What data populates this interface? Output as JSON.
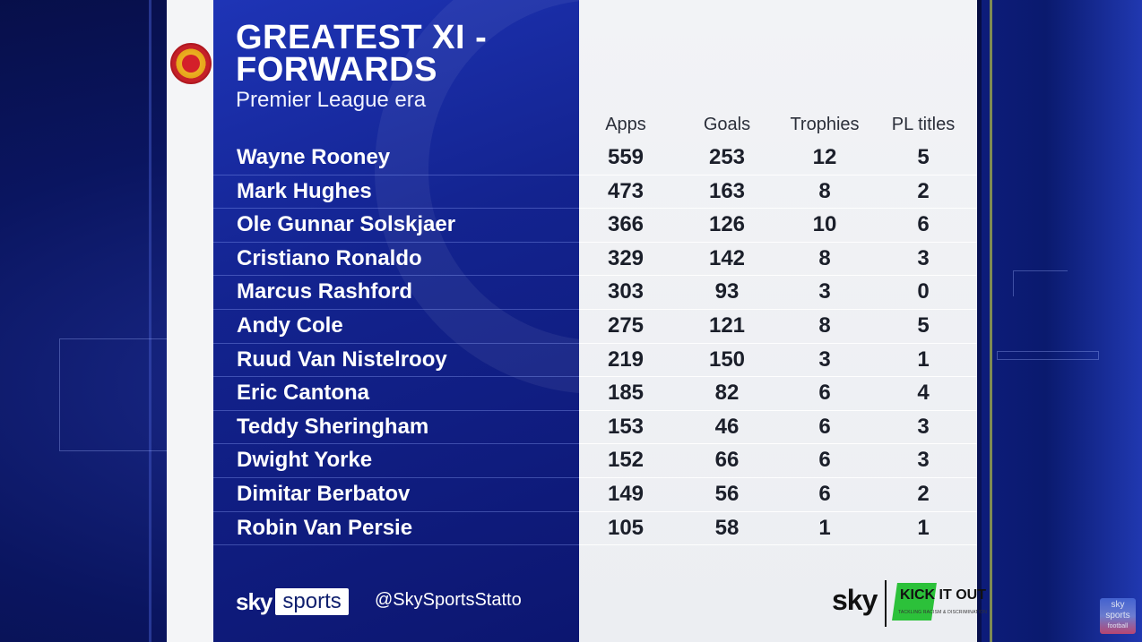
{
  "title": "GREATEST XI - FORWARDS",
  "subtitle": "Premier League era",
  "columns": [
    "Apps",
    "Goals",
    "Trophies",
    "PL titles"
  ],
  "rows": [
    {
      "name": "Wayne Rooney",
      "apps": "559",
      "goals": "253",
      "trophies": "12",
      "pl_titles": "5"
    },
    {
      "name": "Mark Hughes",
      "apps": "473",
      "goals": "163",
      "trophies": "8",
      "pl_titles": "2"
    },
    {
      "name": "Ole Gunnar Solskjaer",
      "apps": "366",
      "goals": "126",
      "trophies": "10",
      "pl_titles": "6"
    },
    {
      "name": "Cristiano Ronaldo",
      "apps": "329",
      "goals": "142",
      "trophies": "8",
      "pl_titles": "3"
    },
    {
      "name": "Marcus Rashford",
      "apps": "303",
      "goals": "93",
      "trophies": "3",
      "pl_titles": "0"
    },
    {
      "name": "Andy Cole",
      "apps": "275",
      "goals": "121",
      "trophies": "8",
      "pl_titles": "5"
    },
    {
      "name": "Ruud Van Nistelrooy",
      "apps": "219",
      "goals": "150",
      "trophies": "3",
      "pl_titles": "1"
    },
    {
      "name": "Eric Cantona",
      "apps": "185",
      "goals": "82",
      "trophies": "6",
      "pl_titles": "4"
    },
    {
      "name": "Teddy Sheringham",
      "apps": "153",
      "goals": "46",
      "trophies": "6",
      "pl_titles": "3"
    },
    {
      "name": "Dwight Yorke",
      "apps": "152",
      "goals": "66",
      "trophies": "6",
      "pl_titles": "3"
    },
    {
      "name": "Dimitar Berbatov",
      "apps": "149",
      "goals": "56",
      "trophies": "6",
      "pl_titles": "2"
    },
    {
      "name": "Robin Van Persie",
      "apps": "105",
      "goals": "58",
      "trophies": "1",
      "pl_titles": "1"
    }
  ],
  "footer": {
    "sky": "sky",
    "sports": "sports",
    "handle": "@SkySportsStatto",
    "right_sky": "sky",
    "kick_it_out": "KICK IT OUT",
    "kick_it_out_tag": "TACKLING RACISM & DISCRIMINATION"
  },
  "corner_bug": {
    "line1": "sky",
    "line2": "sports",
    "line3": "football"
  },
  "crest_text": "MANCHESTER UNITED",
  "colors": {
    "panel_blue": "#13238f",
    "text_dark": "#1b1f2a",
    "kio_green": "#2cc13a"
  },
  "icons": {
    "crest": "club-crest-icon",
    "kio": "kick-it-out-logo-icon"
  }
}
